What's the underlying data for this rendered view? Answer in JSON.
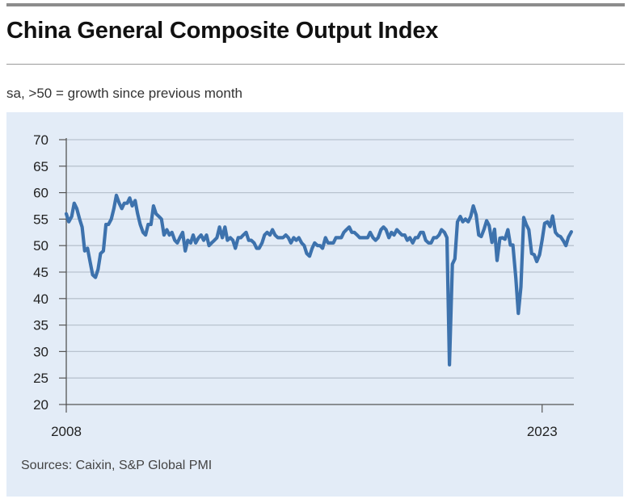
{
  "header": {
    "title": "China General Composite Output Index",
    "subtitle": "sa, >50 = growth since previous month"
  },
  "footer": {
    "source": "Sources: Caixin, S&P Global PMI"
  },
  "colors": {
    "line": "#3d72ad",
    "panel": "#e3ecf7",
    "grid": "#b9c3cf",
    "axis": "#555555"
  },
  "chart_data": {
    "type": "line",
    "title": "China General Composite Output Index",
    "subtitle": "sa, >50 = growth since previous month",
    "xlabel": "",
    "ylabel": "",
    "ylim": [
      20,
      70
    ],
    "yticks": [
      20,
      25,
      30,
      35,
      40,
      45,
      50,
      55,
      60,
      65,
      70
    ],
    "xlim": [
      2008.0,
      2024.0
    ],
    "xticks": [
      {
        "value": 2008,
        "label": "2008"
      },
      {
        "value": 2023,
        "label": "2023"
      }
    ],
    "grid": true,
    "legend": "none",
    "series": [
      {
        "values": [
          [
            2008.0,
            56.0
          ],
          [
            2008.08,
            54.5
          ],
          [
            2008.17,
            55.5
          ],
          [
            2008.25,
            58.0
          ],
          [
            2008.33,
            57.0
          ],
          [
            2008.42,
            55.0
          ],
          [
            2008.5,
            53.5
          ],
          [
            2008.58,
            49.0
          ],
          [
            2008.67,
            49.5
          ],
          [
            2008.75,
            47.0
          ],
          [
            2008.83,
            44.5
          ],
          [
            2008.92,
            44.0
          ],
          [
            2009.0,
            45.5
          ],
          [
            2009.08,
            48.5
          ],
          [
            2009.17,
            49.0
          ],
          [
            2009.25,
            54.0
          ],
          [
            2009.33,
            54.0
          ],
          [
            2009.42,
            55.0
          ],
          [
            2009.5,
            57.0
          ],
          [
            2009.58,
            59.5
          ],
          [
            2009.67,
            58.0
          ],
          [
            2009.75,
            57.0
          ],
          [
            2009.83,
            58.0
          ],
          [
            2009.92,
            58.0
          ],
          [
            2010.0,
            59.0
          ],
          [
            2010.08,
            57.5
          ],
          [
            2010.17,
            58.5
          ],
          [
            2010.25,
            56.0
          ],
          [
            2010.33,
            54.0
          ],
          [
            2010.42,
            52.5
          ],
          [
            2010.5,
            52.0
          ],
          [
            2010.58,
            54.0
          ],
          [
            2010.67,
            54.0
          ],
          [
            2010.75,
            57.5
          ],
          [
            2010.83,
            56.0
          ],
          [
            2010.92,
            55.5
          ],
          [
            2011.0,
            55.0
          ],
          [
            2011.08,
            52.0
          ],
          [
            2011.17,
            53.0
          ],
          [
            2011.25,
            52.0
          ],
          [
            2011.33,
            52.5
          ],
          [
            2011.42,
            51.0
          ],
          [
            2011.5,
            50.5
          ],
          [
            2011.58,
            51.5
          ],
          [
            2011.67,
            52.5
          ],
          [
            2011.75,
            49.0
          ],
          [
            2011.83,
            51.0
          ],
          [
            2011.92,
            50.5
          ],
          [
            2012.0,
            52.0
          ],
          [
            2012.08,
            50.5
          ],
          [
            2012.17,
            51.5
          ],
          [
            2012.25,
            52.0
          ],
          [
            2012.33,
            51.0
          ],
          [
            2012.42,
            52.0
          ],
          [
            2012.5,
            50.0
          ],
          [
            2012.58,
            50.5
          ],
          [
            2012.67,
            51.0
          ],
          [
            2012.75,
            51.5
          ],
          [
            2012.83,
            53.5
          ],
          [
            2012.92,
            51.5
          ],
          [
            2013.0,
            53.5
          ],
          [
            2013.08,
            51.0
          ],
          [
            2013.17,
            51.5
          ],
          [
            2013.25,
            51.0
          ],
          [
            2013.33,
            49.5
          ],
          [
            2013.42,
            51.5
          ],
          [
            2013.5,
            51.5
          ],
          [
            2013.58,
            52.0
          ],
          [
            2013.67,
            52.5
          ],
          [
            2013.75,
            51.0
          ],
          [
            2013.83,
            51.0
          ],
          [
            2013.92,
            50.5
          ],
          [
            2014.0,
            49.5
          ],
          [
            2014.08,
            49.5
          ],
          [
            2014.17,
            50.5
          ],
          [
            2014.25,
            52.0
          ],
          [
            2014.33,
            52.5
          ],
          [
            2014.42,
            52.0
          ],
          [
            2014.5,
            53.0
          ],
          [
            2014.58,
            52.0
          ],
          [
            2014.67,
            51.5
          ],
          [
            2014.75,
            51.5
          ],
          [
            2014.83,
            51.5
          ],
          [
            2014.92,
            52.0
          ],
          [
            2015.0,
            51.5
          ],
          [
            2015.08,
            50.5
          ],
          [
            2015.17,
            51.5
          ],
          [
            2015.25,
            51.0
          ],
          [
            2015.33,
            51.5
          ],
          [
            2015.42,
            50.5
          ],
          [
            2015.5,
            50.0
          ],
          [
            2015.58,
            48.5
          ],
          [
            2015.67,
            48.0
          ],
          [
            2015.75,
            49.5
          ],
          [
            2015.83,
            50.5
          ],
          [
            2015.92,
            50.0
          ],
          [
            2016.0,
            50.0
          ],
          [
            2016.08,
            49.5
          ],
          [
            2016.17,
            51.5
          ],
          [
            2016.25,
            50.5
          ],
          [
            2016.33,
            50.5
          ],
          [
            2016.42,
            50.5
          ],
          [
            2016.5,
            51.5
          ],
          [
            2016.58,
            51.5
          ],
          [
            2016.67,
            51.5
          ],
          [
            2016.75,
            52.5
          ],
          [
            2016.83,
            53.0
          ],
          [
            2016.92,
            53.5
          ],
          [
            2017.0,
            52.5
          ],
          [
            2017.08,
            52.5
          ],
          [
            2017.17,
            52.0
          ],
          [
            2017.25,
            51.5
          ],
          [
            2017.33,
            51.5
          ],
          [
            2017.42,
            51.5
          ],
          [
            2017.5,
            51.5
          ],
          [
            2017.58,
            52.5
          ],
          [
            2017.67,
            51.5
          ],
          [
            2017.75,
            51.0
          ],
          [
            2017.83,
            51.5
          ],
          [
            2017.92,
            53.0
          ],
          [
            2018.0,
            53.5
          ],
          [
            2018.08,
            53.0
          ],
          [
            2018.17,
            51.5
          ],
          [
            2018.25,
            52.5
          ],
          [
            2018.33,
            52.0
          ],
          [
            2018.42,
            53.0
          ],
          [
            2018.5,
            52.5
          ],
          [
            2018.58,
            52.0
          ],
          [
            2018.67,
            52.0
          ],
          [
            2018.75,
            51.0
          ],
          [
            2018.83,
            51.5
          ],
          [
            2018.92,
            50.5
          ],
          [
            2019.0,
            51.5
          ],
          [
            2019.08,
            51.5
          ],
          [
            2019.17,
            52.5
          ],
          [
            2019.25,
            52.5
          ],
          [
            2019.33,
            51.0
          ],
          [
            2019.42,
            50.5
          ],
          [
            2019.5,
            50.5
          ],
          [
            2019.58,
            51.5
          ],
          [
            2019.67,
            51.5
          ],
          [
            2019.75,
            52.0
          ],
          [
            2019.83,
            53.0
          ],
          [
            2019.92,
            52.5
          ],
          [
            2020.0,
            51.5
          ],
          [
            2020.08,
            27.5
          ],
          [
            2020.17,
            46.5
          ],
          [
            2020.25,
            47.5
          ],
          [
            2020.33,
            54.5
          ],
          [
            2020.42,
            55.5
          ],
          [
            2020.5,
            54.5
          ],
          [
            2020.58,
            55.0
          ],
          [
            2020.67,
            54.5
          ],
          [
            2020.75,
            55.5
          ],
          [
            2020.83,
            57.5
          ],
          [
            2020.92,
            55.8
          ],
          [
            2021.0,
            52.0
          ],
          [
            2021.08,
            51.7
          ],
          [
            2021.17,
            53.1
          ],
          [
            2021.25,
            54.7
          ],
          [
            2021.33,
            53.8
          ],
          [
            2021.42,
            50.6
          ],
          [
            2021.5,
            53.1
          ],
          [
            2021.58,
            47.2
          ],
          [
            2021.67,
            51.4
          ],
          [
            2021.75,
            51.5
          ],
          [
            2021.83,
            51.2
          ],
          [
            2021.92,
            53.0
          ],
          [
            2022.0,
            50.1
          ],
          [
            2022.08,
            50.1
          ],
          [
            2022.17,
            43.9
          ],
          [
            2022.25,
            37.2
          ],
          [
            2022.33,
            42.2
          ],
          [
            2022.42,
            55.3
          ],
          [
            2022.5,
            54.0
          ],
          [
            2022.58,
            53.0
          ],
          [
            2022.67,
            48.5
          ],
          [
            2022.75,
            48.3
          ],
          [
            2022.83,
            47.0
          ],
          [
            2022.92,
            48.3
          ],
          [
            2023.0,
            51.1
          ],
          [
            2023.08,
            54.2
          ],
          [
            2023.17,
            54.5
          ],
          [
            2023.25,
            53.6
          ],
          [
            2023.33,
            55.6
          ],
          [
            2023.42,
            52.5
          ],
          [
            2023.5,
            51.9
          ],
          [
            2023.58,
            51.7
          ],
          [
            2023.67,
            50.9
          ],
          [
            2023.75,
            50.0
          ],
          [
            2023.83,
            51.6
          ],
          [
            2023.92,
            52.6
          ]
        ]
      }
    ]
  }
}
